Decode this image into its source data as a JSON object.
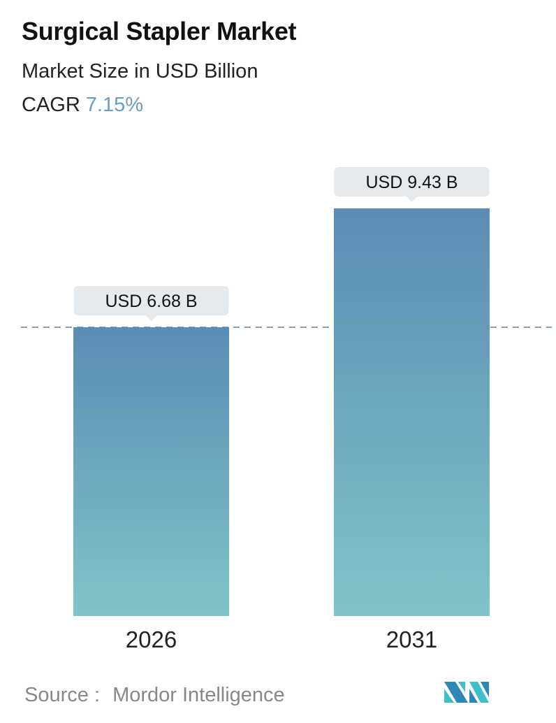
{
  "header": {
    "title": "Surgical Stapler Market",
    "subtitle": "Market Size in USD Billion",
    "cagr_label": "CAGR",
    "cagr_value": "7.15%"
  },
  "chart_data": {
    "type": "bar",
    "categories": [
      "2026",
      "2031"
    ],
    "values": [
      6.68,
      9.43
    ],
    "data_labels": [
      "USD 6.68 B",
      "USD 9.43 B"
    ],
    "reference_line": {
      "value": 6.68,
      "style": "dashed"
    },
    "colors": {
      "bar_top": "#5b8cb4",
      "bar_bottom": "#80c4c9",
      "label_bg": "#e4eaee",
      "ref_line": "#5a86a8",
      "accent": "#6b9bc0"
    },
    "grid": false
  },
  "footer": {
    "source_label": "Source :",
    "source_name": "Mordor Intelligence",
    "logo_text": "MN"
  }
}
